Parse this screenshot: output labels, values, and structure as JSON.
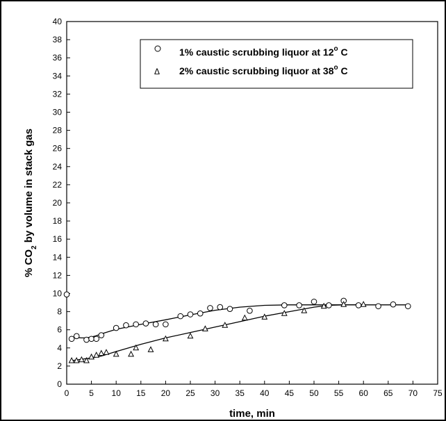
{
  "chart_data": {
    "type": "scatter",
    "xlabel": "time, min",
    "ylabel": "% CO2 by volume in stack gas",
    "xlim": [
      0,
      75
    ],
    "ylim": [
      0,
      40
    ],
    "x_ticks": [
      0,
      5,
      10,
      15,
      20,
      25,
      30,
      35,
      40,
      45,
      50,
      55,
      60,
      65,
      70,
      75
    ],
    "y_ticks": [
      0,
      2,
      4,
      6,
      8,
      10,
      12,
      14,
      16,
      18,
      20,
      22,
      24,
      26,
      28,
      30,
      32,
      34,
      36,
      38,
      40
    ],
    "grid": false,
    "legend_position": "top-right",
    "series": [
      {
        "name": "1% caustic scrubbing liquor at 12° C",
        "legend_text": "1% caustic scrubbing liquor at 12",
        "legend_sup": "o",
        "legend_tail": " C",
        "marker": "circle",
        "x": [
          0,
          1,
          2,
          4,
          5,
          6,
          7,
          10,
          12,
          14,
          16,
          18,
          20,
          23,
          25,
          27,
          29,
          31,
          33,
          37,
          44,
          47,
          50,
          53,
          56,
          59,
          63,
          66,
          69
        ],
        "y": [
          9.9,
          5.0,
          5.3,
          4.9,
          5.0,
          5.0,
          5.4,
          6.2,
          6.5,
          6.6,
          6.7,
          6.6,
          6.6,
          7.5,
          7.7,
          7.8,
          8.4,
          8.5,
          8.3,
          8.1,
          8.7,
          8.7,
          9.1,
          8.7,
          9.2,
          8.7,
          8.6,
          8.8,
          8.6
        ],
        "fit_curve": {
          "x": [
            1,
            2,
            3,
            4,
            5,
            6,
            7,
            10,
            15,
            20,
            25,
            30,
            35,
            40,
            45,
            50,
            55,
            60,
            65,
            69
          ],
          "y": [
            5.1,
            5.15,
            5.1,
            5.1,
            5.2,
            5.35,
            5.55,
            6.05,
            6.6,
            7.1,
            7.65,
            8.15,
            8.5,
            8.7,
            8.75,
            8.75,
            8.75,
            8.75,
            8.75,
            8.75
          ]
        }
      },
      {
        "name": "2% caustic scrubbing liquor at 38° C",
        "legend_text": "2% caustic scrubbing liquor at 38",
        "legend_sup": "o",
        "legend_tail": " C",
        "marker": "triangle",
        "x": [
          1,
          2,
          3,
          4,
          5,
          6,
          7,
          8,
          10,
          13,
          14,
          17,
          20,
          25,
          28,
          32,
          36,
          40,
          44,
          48,
          52,
          56,
          60
        ],
        "y": [
          2.6,
          2.6,
          2.7,
          2.6,
          3.0,
          3.2,
          3.4,
          3.5,
          3.3,
          3.3,
          4.0,
          3.8,
          5.0,
          5.3,
          6.1,
          6.5,
          7.3,
          7.4,
          7.8,
          8.1,
          8.6,
          8.8,
          8.8
        ],
        "fit_curve": {
          "x": [
            1,
            3,
            5,
            7,
            10,
            15,
            20,
            25,
            30,
            35,
            40,
            45,
            50,
            53,
            56,
            60
          ],
          "y": [
            2.6,
            2.75,
            2.9,
            3.1,
            3.6,
            4.4,
            5.1,
            5.7,
            6.3,
            6.9,
            7.5,
            8.0,
            8.5,
            8.7,
            8.75,
            8.75
          ]
        }
      }
    ]
  }
}
